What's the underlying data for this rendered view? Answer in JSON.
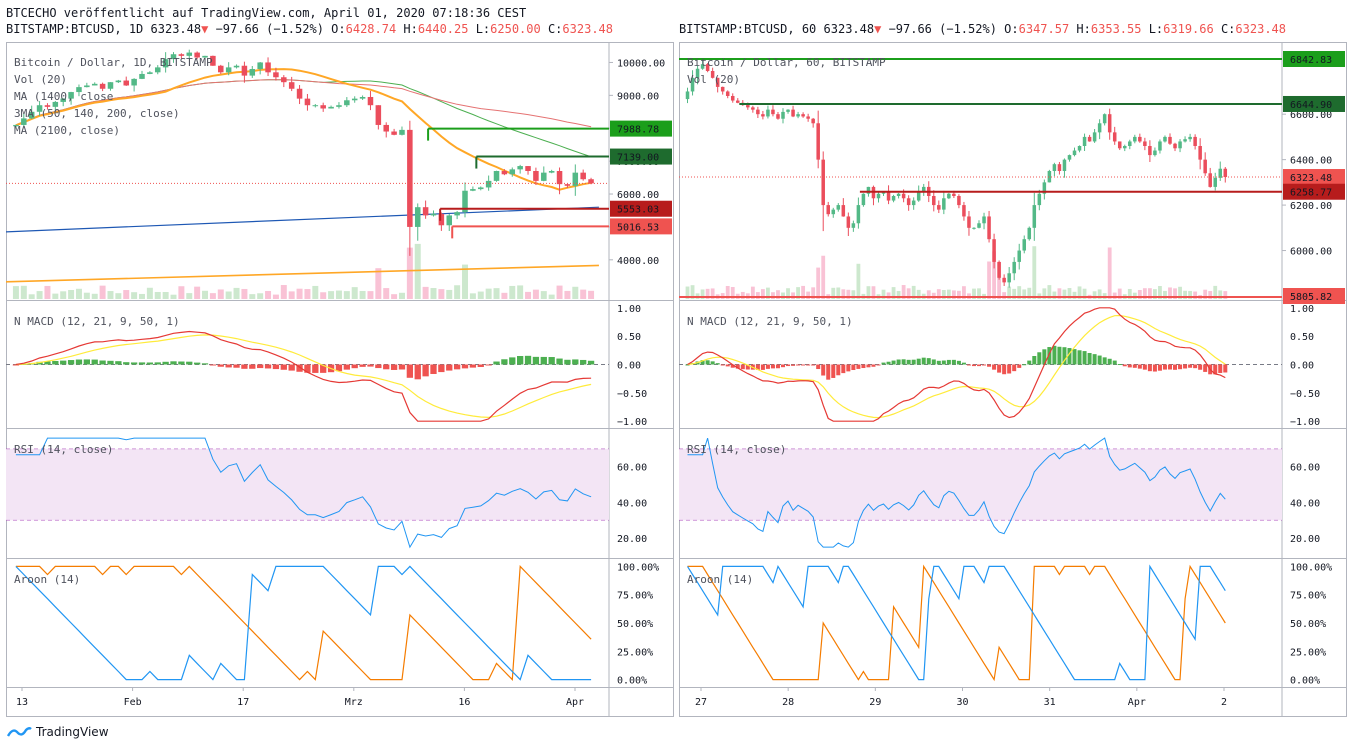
{
  "header": {
    "published": "BTCECHO veröffentlicht auf TradingView.com, April 01, 2020 07:18:36 CEST",
    "left_symbol": "BITSTAMP:BTCUSD, 1D",
    "left_price": "6323.48",
    "left_change": "−97.66 (−1.52%)",
    "left_o": "6428.74",
    "left_h": "6440.25",
    "left_l": "6250.00",
    "left_c": "6323.48",
    "right_symbol": "BITSTAMP:BTCUSD, 60",
    "right_price": "6323.48",
    "right_change": "−97.66 (−1.52%)",
    "right_o": "6347.57",
    "right_h": "6353.55",
    "right_l": "6319.66",
    "right_c": "6323.48"
  },
  "footer": {
    "brand": "TradingView"
  },
  "colors": {
    "up": "#26a69a",
    "down": "#ef5350",
    "green_candle": "#53b987",
    "red_candle": "#eb4d5c",
    "macd_hist_up": "#4caf50",
    "rsi_line": "#2196f3",
    "rsi_band": "#f3e5f5",
    "aroon_up": "#f57c00",
    "aroon_down": "#2196f3"
  },
  "chart_data": [
    {
      "type": "candlestick",
      "title": "Bitcoin / Dollar, 1D, BITSTAMP",
      "legend": [
        "Bitcoin / Dollar, 1D, BITSTAMP",
        "Vol (20)",
        "MA (1400, close",
        "3MA (50, 140, 200, close)",
        "MA (2100, close)"
      ],
      "x_ticks": [
        "13",
        "Feb",
        "17",
        "Mrz",
        "16",
        "Apr"
      ],
      "price_ticks": [
        "10000.00",
        "9000.00",
        "8000.00",
        "7000.00",
        "6000.00",
        "5000.00",
        "4000.00"
      ],
      "ylim": [
        2900,
        10500
      ],
      "level_labels": [
        {
          "value": 7988.78,
          "label": "7988.78",
          "color": "#1b9e1b"
        },
        {
          "value": 7139.0,
          "label": "7139.00",
          "color": "#1e6b2e"
        },
        {
          "value": 5553.03,
          "label": "5553.03",
          "color": "#b71c1c"
        },
        {
          "value": 5016.53,
          "label": "5016.53",
          "color": "#ef5350"
        }
      ],
      "close": [
        8100,
        8300,
        8500,
        8700,
        8650,
        8800,
        8900,
        9100,
        9250,
        9300,
        9350,
        9200,
        9400,
        9450,
        9300,
        9500,
        9650,
        9700,
        9850,
        10100,
        10250,
        10200,
        10300,
        10150,
        10200,
        9900,
        9700,
        9850,
        9900,
        9600,
        9800,
        10000,
        9700,
        9550,
        9400,
        9200,
        8900,
        8700,
        8700,
        8600,
        8650,
        8700,
        8850,
        8900,
        8950,
        8700,
        8100,
        7900,
        7800,
        7950,
        5000,
        5600,
        5350,
        5400,
        5050,
        5350,
        5450,
        6100,
        6150,
        6200,
        6400,
        6700,
        6600,
        6750,
        6850,
        6700,
        6400,
        6650,
        6700,
        6300,
        6250,
        6650,
        6450,
        6323.48
      ],
      "macd_panel": {
        "title": "N MACD (12, 21, 9, 50, 1)",
        "ticks": [
          "1.00",
          "0.50",
          "0.00",
          "−0.50",
          "−1.00"
        ],
        "ylim": [
          -1.05,
          1.05
        ]
      },
      "rsi_panel": {
        "title": "RSI (14, close)",
        "ticks": [
          "60.00",
          "40.00",
          "20.00"
        ],
        "ylim": [
          10,
          80
        ],
        "band": [
          30,
          70
        ]
      },
      "aroon_panel": {
        "title": "Aroon (14)",
        "ticks": [
          "100.00%",
          "75.00%",
          "50.00%",
          "25.00%",
          "0.00%"
        ],
        "ylim": [
          -3,
          103
        ]
      }
    },
    {
      "type": "candlestick",
      "title": "Bitcoin / Dollar, 60, BITSTAMP",
      "legend": [
        "Bitcoin / Dollar, 60, BITSTAMP",
        "Vol (20)"
      ],
      "x_ticks": [
        "27",
        "28",
        "29",
        "30",
        "31",
        "Apr",
        "2"
      ],
      "price_ticks": [
        "6600.00",
        "6400.00",
        "6200.00",
        "6000.00"
      ],
      "ylim": [
        5800,
        6900
      ],
      "level_labels": [
        {
          "value": 6842.83,
          "label": "6842.83",
          "color": "#1b9e1b"
        },
        {
          "value": 6644.9,
          "label": "6644.90",
          "color": "#1e6b2e"
        },
        {
          "value": 6323.48,
          "label": "6323.48",
          "color": "#ef5350"
        },
        {
          "value": 6258.77,
          "label": "6258.77",
          "color": "#b71c1c"
        },
        {
          "value": 5805.82,
          "label": "5805.82",
          "color": "#ef5350"
        }
      ],
      "close": [
        6700,
        6760,
        6800,
        6820,
        6790,
        6760,
        6720,
        6700,
        6680,
        6660,
        6650,
        6640,
        6630,
        6620,
        6600,
        6590,
        6620,
        6600,
        6580,
        6610,
        6620,
        6590,
        6600,
        6590,
        6580,
        6560,
        6400,
        6200,
        6160,
        6180,
        6200,
        6150,
        6100,
        6120,
        6200,
        6250,
        6280,
        6230,
        6250,
        6260,
        6220,
        6240,
        6250,
        6230,
        6200,
        6220,
        6260,
        6280,
        6240,
        6200,
        6180,
        6230,
        6250,
        6240,
        6200,
        6150,
        6100,
        6100,
        6120,
        6150,
        6050,
        5950,
        5880,
        5860,
        5900,
        5950,
        6000,
        6050,
        6100,
        6200,
        6250,
        6300,
        6350,
        6380,
        6350,
        6400,
        6420,
        6440,
        6460,
        6500,
        6480,
        6520,
        6560,
        6600,
        6520,
        6480,
        6450,
        6460,
        6480,
        6500,
        6480,
        6460,
        6420,
        6440,
        6480,
        6500,
        6470,
        6450,
        6480,
        6490,
        6500,
        6460,
        6400,
        6340,
        6280,
        6320,
        6360,
        6323.48
      ],
      "macd_panel": {
        "title": "N MACD (12, 21, 9, 50, 1)",
        "ticks": [
          "1.00",
          "0.50",
          "0.00",
          "−0.50",
          "−1.00"
        ],
        "ylim": [
          -1.05,
          1.05
        ]
      },
      "rsi_panel": {
        "title": "RSI (14, close)",
        "ticks": [
          "60.00",
          "40.00",
          "20.00"
        ],
        "ylim": [
          10,
          80
        ],
        "band": [
          30,
          70
        ]
      },
      "aroon_panel": {
        "title": "Aroon (14)",
        "ticks": [
          "100.00%",
          "75.00%",
          "50.00%",
          "25.00%",
          "0.00%"
        ],
        "ylim": [
          -3,
          103
        ]
      }
    }
  ]
}
